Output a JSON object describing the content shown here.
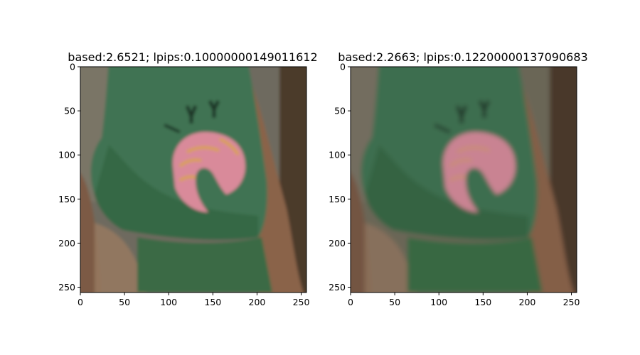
{
  "figure": {
    "panels": [
      {
        "title": "based:2.6521; lpips:0.10000000149011612",
        "xticks": [
          0,
          50,
          100,
          150,
          200,
          250
        ],
        "yticks": [
          0,
          50,
          100,
          150,
          200,
          250
        ]
      },
      {
        "title": "based:2.2663; lpips:0.12200000137090683",
        "xticks": [
          0,
          50,
          100,
          150,
          200,
          250
        ],
        "yticks": [
          0,
          50,
          100,
          150,
          200,
          250
        ]
      }
    ]
  },
  "colors": {
    "background_left": "#6f6a5e",
    "background_right": "#6a6657",
    "shirt": "#3f7352",
    "shirt_dark": "#2f5a3f",
    "shorts": "#3a6a45",
    "skin": "#8a6348",
    "skin_dark": "#6e4d38",
    "logo_pink": "#d98a9a",
    "logo_orange": "#d9a24a",
    "letter_dark": "#1f3526"
  },
  "image_content": {
    "subject": "torso of a person wearing a green t-shirt with a pink shrimp-like logo, green shorts, arms at sides",
    "logo_letters": "Y",
    "axes_range": [
      0,
      256
    ]
  }
}
